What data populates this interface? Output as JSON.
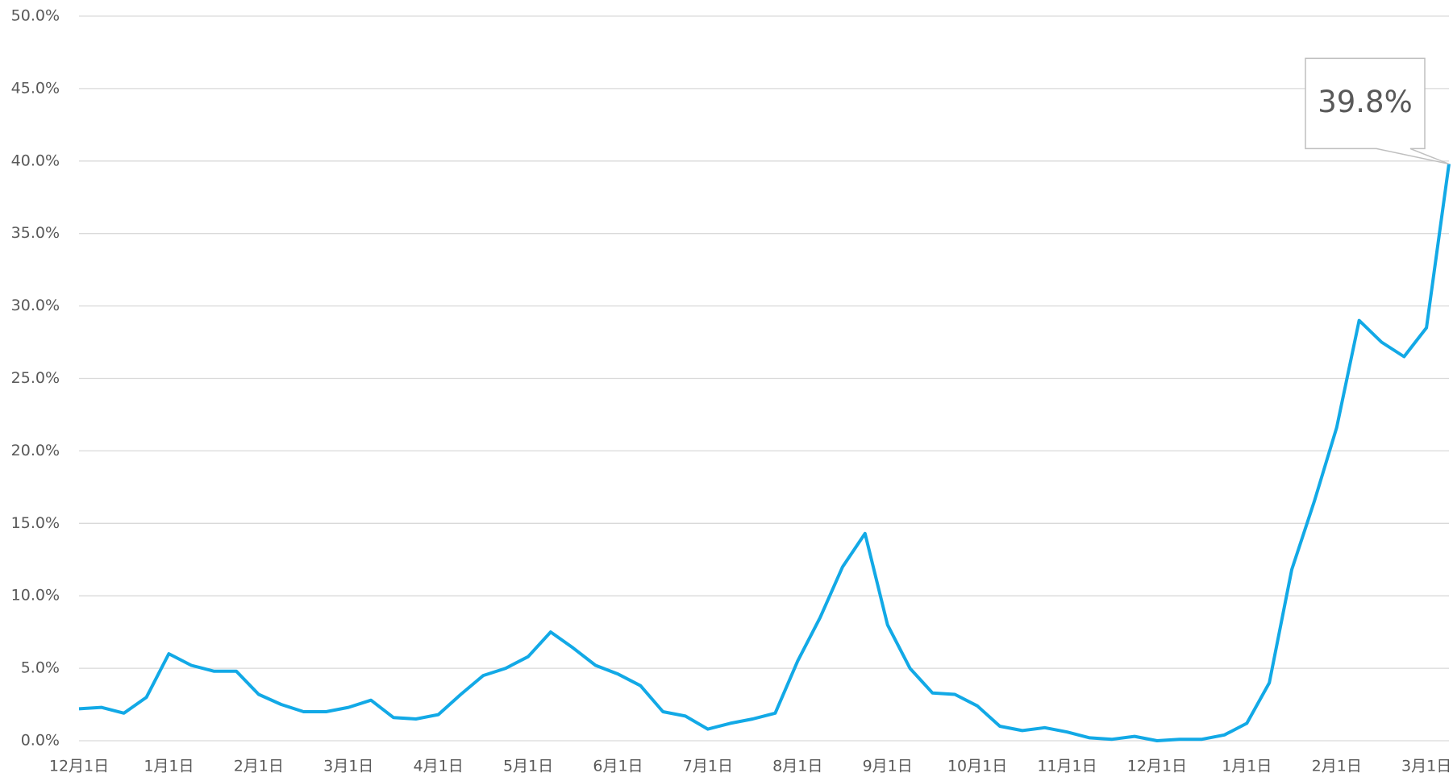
{
  "chart_data": {
    "type": "line",
    "categories": [
      "12月1日",
      null,
      null,
      null,
      "1月1日",
      null,
      null,
      null,
      "2月1日",
      null,
      null,
      null,
      "3月1日",
      null,
      null,
      null,
      "4月1日",
      null,
      null,
      null,
      "5月1日",
      null,
      null,
      null,
      "6月1日",
      null,
      null,
      null,
      "7月1日",
      null,
      null,
      null,
      "8月1日",
      null,
      null,
      null,
      "9月1日",
      null,
      null,
      null,
      "10月1日",
      null,
      null,
      null,
      "11月1日",
      null,
      null,
      null,
      "12月1日",
      null,
      null,
      null,
      "1月1日",
      null,
      null,
      null,
      "2月1日",
      null,
      null,
      null,
      "3月1日",
      null
    ],
    "values": [
      2.2,
      2.3,
      1.9,
      3.0,
      6.0,
      5.2,
      4.8,
      4.8,
      3.2,
      2.5,
      2.0,
      2.0,
      2.3,
      2.8,
      1.6,
      1.5,
      1.8,
      3.2,
      4.5,
      5.0,
      5.8,
      7.5,
      6.4,
      5.2,
      4.6,
      3.8,
      2.0,
      1.7,
      0.8,
      1.2,
      1.5,
      1.9,
      5.5,
      8.5,
      12.0,
      14.3,
      8.0,
      5.0,
      3.3,
      3.2,
      2.4,
      1.0,
      0.7,
      0.9,
      0.6,
      0.2,
      0.1,
      0.3,
      0.0,
      0.1,
      0.1,
      0.4,
      1.2,
      4.0,
      11.8,
      16.5,
      21.6,
      29.0,
      27.5,
      26.5,
      28.5,
      39.8
    ],
    "value_labels": [
      null,
      null,
      null,
      null,
      null,
      null,
      null,
      null,
      null,
      null,
      null,
      null,
      null,
      null,
      null,
      null,
      null,
      null,
      null,
      null,
      null,
      null,
      null,
      null,
      null,
      null,
      null,
      null,
      null,
      null,
      null,
      null,
      null,
      null,
      null,
      null,
      null,
      null,
      null,
      null,
      null,
      null,
      null,
      null,
      null,
      null,
      null,
      null,
      null,
      null,
      null,
      null,
      null,
      null,
      null,
      null,
      null,
      null,
      null,
      null,
      null,
      "39.8%"
    ],
    "color": "#12a9e6",
    "ylim": [
      0,
      50
    ],
    "yticks": [
      {
        "value": 0,
        "label": "0.0%"
      },
      {
        "value": 5,
        "label": "5.0%"
      },
      {
        "value": 10,
        "label": "10.0%"
      },
      {
        "value": 15,
        "label": "15.0%"
      },
      {
        "value": 20,
        "label": "20.0%"
      },
      {
        "value": 25,
        "label": "25.0%"
      },
      {
        "value": 30,
        "label": "30.0%"
      },
      {
        "value": 35,
        "label": "35.0%"
      },
      {
        "value": 40,
        "label": "40.0%"
      },
      {
        "value": 45,
        "label": "45.0%"
      },
      {
        "value": 50,
        "label": "50.0%"
      }
    ],
    "grid": true
  }
}
